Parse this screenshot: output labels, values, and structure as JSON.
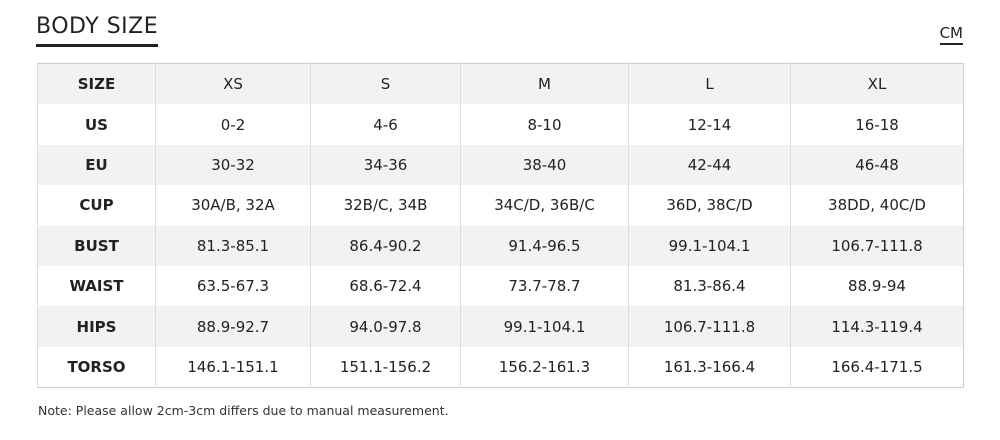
{
  "header": {
    "title": "BODY SIZE",
    "unit": "CM"
  },
  "table": {
    "columns": [
      "SIZE",
      "XS",
      "S",
      "M",
      "L",
      "XL"
    ],
    "rows": [
      [
        "US",
        "0-2",
        "4-6",
        "8-10",
        "12-14",
        "16-18"
      ],
      [
        "EU",
        "30-32",
        "34-36",
        "38-40",
        "42-44",
        "46-48"
      ],
      [
        "CUP",
        "30A/B, 32A",
        "32B/C, 34B",
        "34C/D, 36B/C",
        "36D, 38C/D",
        "38DD, 40C/D"
      ],
      [
        "BUST",
        "81.3-85.1",
        "86.4-90.2",
        "91.4-96.5",
        "99.1-104.1",
        "106.7-111.8"
      ],
      [
        "WAIST",
        "63.5-67.3",
        "68.6-72.4",
        "73.7-78.7",
        "81.3-86.4",
        "88.9-94"
      ],
      [
        "HIPS",
        "88.9-92.7",
        "94.0-97.8",
        "99.1-104.1",
        "106.7-111.8",
        "114.3-119.4"
      ],
      [
        "TORSO",
        "146.1-151.1",
        "151.1-156.2",
        "156.2-161.3",
        "161.3-166.4",
        "166.4-171.5"
      ]
    ]
  },
  "note": "Note: Please allow 2cm-3cm differs due to manual measurement."
}
